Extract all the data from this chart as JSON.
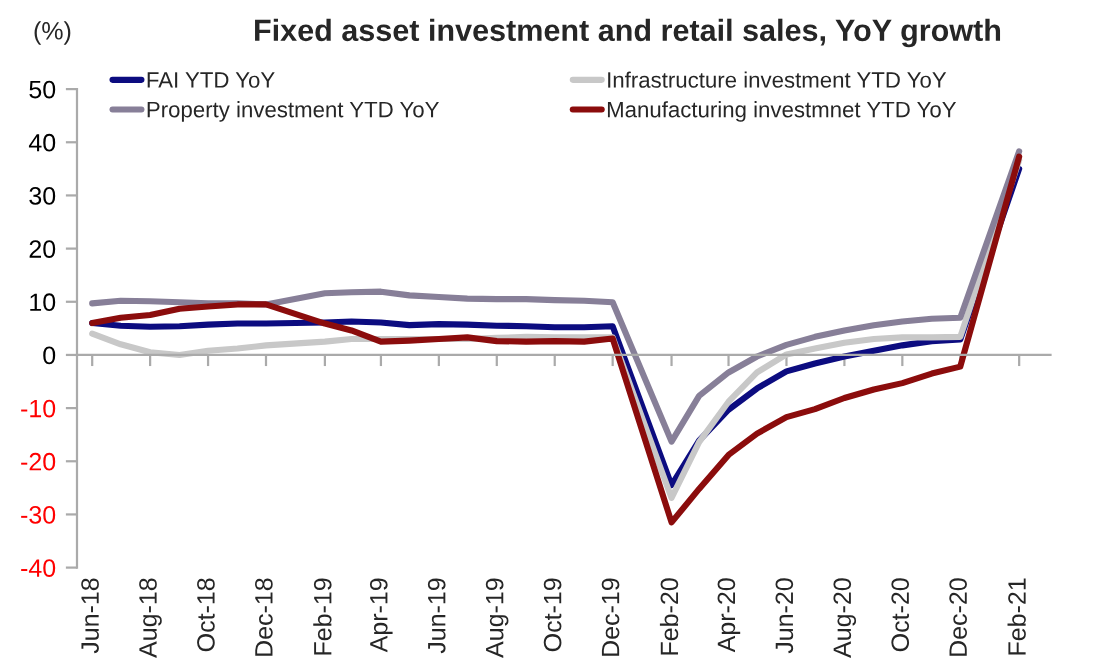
{
  "chart_data": {
    "type": "line",
    "title": "Fixed asset investment and retail sales, YoY growth",
    "ylabel": "(%)",
    "x": [
      "2018-06",
      "2018-07",
      "2018-08",
      "2018-09",
      "2018-10",
      "2018-11",
      "2018-12",
      "2019-02",
      "2019-03",
      "2019-04",
      "2019-05",
      "2019-06",
      "2019-07",
      "2019-08",
      "2019-09",
      "2019-10",
      "2019-11",
      "2019-12",
      "2020-02",
      "2020-03",
      "2020-04",
      "2020-05",
      "2020-06",
      "2020-07",
      "2020-08",
      "2020-09",
      "2020-10",
      "2020-11",
      "2020-12",
      "2021-02"
    ],
    "series": [
      {
        "name": "FAI YTD YoY",
        "color": "#0c0c80",
        "values": [
          6.0,
          5.5,
          5.3,
          5.4,
          5.7,
          5.9,
          5.9,
          6.1,
          6.3,
          6.1,
          5.6,
          5.8,
          5.7,
          5.5,
          5.4,
          5.2,
          5.2,
          5.4,
          -24.5,
          -16.1,
          -10.3,
          -6.3,
          -3.1,
          -1.6,
          -0.3,
          0.8,
          1.8,
          2.6,
          2.9,
          35.0
        ]
      },
      {
        "name": "Infrastructure investment YTD YoY",
        "color": "#c8c8c8",
        "values": [
          4.0,
          2.0,
          0.5,
          0.0,
          0.8,
          1.2,
          1.8,
          2.5,
          3.0,
          3.0,
          3.0,
          3.0,
          3.0,
          3.2,
          3.4,
          3.3,
          3.3,
          3.3,
          -26.9,
          -16.4,
          -8.8,
          -3.3,
          0.1,
          1.2,
          2.3,
          3.0,
          3.3,
          3.3,
          3.4,
          36.6
        ]
      },
      {
        "name": "Property investment YTD YoY",
        "color": "#877f98",
        "values": [
          9.7,
          10.2,
          10.1,
          9.9,
          9.7,
          9.7,
          9.5,
          11.6,
          11.8,
          11.9,
          11.2,
          10.9,
          10.6,
          10.5,
          10.5,
          10.3,
          10.2,
          9.9,
          -16.3,
          -7.7,
          -3.3,
          -0.3,
          1.9,
          3.4,
          4.6,
          5.6,
          6.3,
          6.8,
          7.0,
          38.3
        ]
      },
      {
        "name": "Manufacturing investmnet YTD YoY",
        "color": "#8b0c0c",
        "values": [
          6.0,
          7.0,
          7.5,
          8.7,
          9.1,
          9.5,
          9.5,
          5.9,
          4.6,
          2.5,
          2.7,
          3.0,
          3.3,
          2.6,
          2.5,
          2.6,
          2.5,
          3.1,
          -31.5,
          -25.2,
          -18.8,
          -14.8,
          -11.7,
          -10.2,
          -8.1,
          -6.5,
          -5.3,
          -3.5,
          -2.2,
          37.3
        ]
      }
    ],
    "xlim": [
      "2018-05-16",
      "2021-03-06"
    ],
    "xticks": [
      {
        "value": "2018-06",
        "label": "Jun-18"
      },
      {
        "value": "2018-08",
        "label": "Aug-18"
      },
      {
        "value": "2018-10",
        "label": "Oct-18"
      },
      {
        "value": "2018-12",
        "label": "Dec-18"
      },
      {
        "value": "2019-02",
        "label": "Feb-19"
      },
      {
        "value": "2019-04",
        "label": "Apr-19"
      },
      {
        "value": "2019-06",
        "label": "Jun-19"
      },
      {
        "value": "2019-08",
        "label": "Aug-19"
      },
      {
        "value": "2019-10",
        "label": "Oct-19"
      },
      {
        "value": "2019-12",
        "label": "Dec-19"
      },
      {
        "value": "2020-02",
        "label": "Feb-20"
      },
      {
        "value": "2020-04",
        "label": "Apr-20"
      },
      {
        "value": "2020-06",
        "label": "Jun-20"
      },
      {
        "value": "2020-08",
        "label": "Aug-20"
      },
      {
        "value": "2020-10",
        "label": "Oct-20"
      },
      {
        "value": "2020-12",
        "label": "Dec-20"
      },
      {
        "value": "2021-02",
        "label": "Feb-21"
      }
    ],
    "ylim": [
      -40,
      50
    ],
    "yticks": [
      -40,
      -30,
      -20,
      -10,
      0,
      10,
      20,
      30,
      40,
      50
    ],
    "legend": "top",
    "marker": "none",
    "line_style": "solid"
  }
}
